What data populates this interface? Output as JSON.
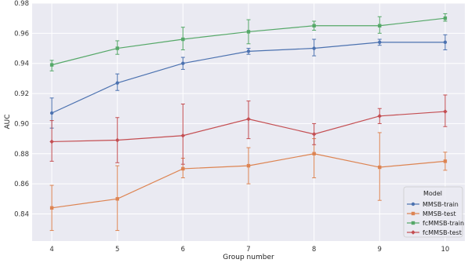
{
  "chart_data": {
    "type": "line",
    "title": "",
    "xlabel": "Group number",
    "ylabel": "AUC",
    "x": [
      4,
      5,
      6,
      7,
      8,
      9,
      10
    ],
    "xlim": [
      3.7,
      10.3
    ],
    "ylim": [
      0.822,
      0.98
    ],
    "yticks": [
      0.84,
      0.86,
      0.88,
      0.9,
      0.92,
      0.94,
      0.96,
      0.98
    ],
    "ytick_labels": [
      "0.84",
      "0.86",
      "0.88",
      "0.90",
      "0.92",
      "0.94",
      "0.96",
      "0.98"
    ],
    "xticks": [
      4,
      5,
      6,
      7,
      8,
      9,
      10
    ],
    "xtick_labels": [
      "4",
      "5",
      "6",
      "7",
      "8",
      "9",
      "10"
    ],
    "grid": true,
    "background": "#eaeaf2",
    "legend": {
      "title": "Model",
      "placement": "bottom-right"
    },
    "series": [
      {
        "name": "MMSB-train",
        "color": "#4c72b0",
        "marker": "circle",
        "values": [
          0.907,
          0.927,
          0.94,
          0.948,
          0.95,
          0.954,
          0.954
        ],
        "err_low": [
          0.897,
          0.922,
          0.936,
          0.946,
          0.945,
          0.952,
          0.949
        ],
        "err_high": [
          0.917,
          0.933,
          0.944,
          0.95,
          0.956,
          0.956,
          0.959
        ]
      },
      {
        "name": "MMSB-test",
        "color": "#dd8452",
        "marker": "square",
        "values": [
          0.844,
          0.85,
          0.87,
          0.872,
          0.88,
          0.871,
          0.875
        ],
        "err_low": [
          0.829,
          0.829,
          0.864,
          0.86,
          0.864,
          0.849,
          0.869
        ],
        "err_high": [
          0.859,
          0.872,
          0.877,
          0.884,
          0.89,
          0.894,
          0.881
        ]
      },
      {
        "name": "fcMMSB-train",
        "color": "#55a868",
        "marker": "square",
        "values": [
          0.939,
          0.95,
          0.956,
          0.961,
          0.965,
          0.965,
          0.97
        ],
        "err_low": [
          0.935,
          0.946,
          0.949,
          0.953,
          0.962,
          0.96,
          0.968
        ],
        "err_high": [
          0.942,
          0.955,
          0.964,
          0.969,
          0.968,
          0.971,
          0.973
        ]
      },
      {
        "name": "fcMMSB-test",
        "color": "#c44e52",
        "marker": "diamond",
        "values": [
          0.888,
          0.889,
          0.892,
          0.903,
          0.893,
          0.905,
          0.908
        ],
        "err_low": [
          0.875,
          0.874,
          0.873,
          0.89,
          0.886,
          0.9,
          0.898
        ],
        "err_high": [
          0.902,
          0.904,
          0.913,
          0.915,
          0.9,
          0.91,
          0.919
        ]
      }
    ]
  }
}
